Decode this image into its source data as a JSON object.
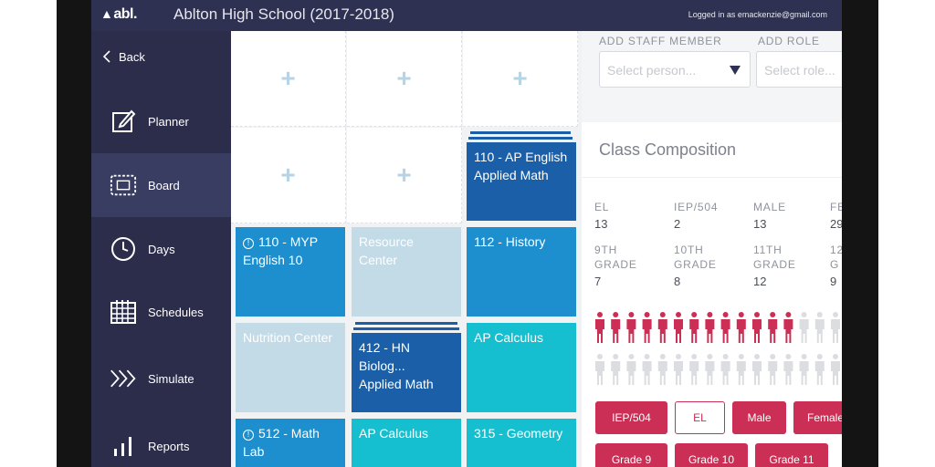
{
  "header": {
    "logo": "abl.",
    "school": "Ablton High School (2017-2018)",
    "login": "Logged in as emackenzie@gmail.com"
  },
  "sidebar": {
    "back": "Back",
    "items": [
      {
        "label": "Planner",
        "icon": "edit-icon"
      },
      {
        "label": "Board",
        "icon": "board-icon"
      },
      {
        "label": "Days",
        "icon": "clock-icon"
      },
      {
        "label": "Schedules",
        "icon": "calendar-icon"
      },
      {
        "label": "Simulate",
        "icon": "fast-forward-icon"
      },
      {
        "label": "Reports",
        "icon": "bar-chart-icon"
      }
    ]
  },
  "board": {
    "plus": "+",
    "cards": {
      "ap_english": {
        "line1": "110 - AP English",
        "line2": "Applied Math"
      },
      "myp": {
        "line1": "110 - MYP",
        "line2": "English 10"
      },
      "resource": {
        "line1": "Resource Center"
      },
      "history": {
        "line1": "112 - History"
      },
      "nutrition": {
        "line1": "Nutrition Center"
      },
      "hn_bio": {
        "line1": "412 - HN Biolog...",
        "line2": "Applied Math"
      },
      "ap_calc_1": {
        "line1": "AP Calculus"
      },
      "math_lab": {
        "line1": "512 - Math Lab"
      },
      "ap_calc_2": {
        "line1": "AP Calculus"
      },
      "geometry": {
        "line1": "315 - Geometry"
      }
    },
    "warn_glyph": "!"
  },
  "panel": {
    "add_staff_label": "ADD STAFF MEMBER",
    "add_role_label": "ADD ROLE",
    "person_placeholder": "Select person...",
    "role_placeholder": "Select role...",
    "composition_title": "Class Composition",
    "stats_row1": [
      {
        "label": "EL",
        "value": "13"
      },
      {
        "label": "IEP/504",
        "value": "2"
      },
      {
        "label": "MALE",
        "value": "13"
      },
      {
        "label": "FE",
        "value": "29"
      }
    ],
    "stats_row2": [
      {
        "label1": "9TH",
        "label2": "GRADE",
        "value": "7"
      },
      {
        "label1": "10TH",
        "label2": "GRADE",
        "value": "8"
      },
      {
        "label1": "11TH",
        "label2": "GRADE",
        "value": "12"
      },
      {
        "label1": "12",
        "label2": "G",
        "value": "9"
      }
    ],
    "people_highlighted": 13,
    "people_per_row": 16,
    "filters_row1": [
      "IEP/504",
      "EL",
      "Male",
      "Female"
    ],
    "filters_row2": [
      "Grade 9",
      "Grade 10",
      "Grade 11"
    ],
    "colors": {
      "accent": "#cc2f55",
      "navy": "#2f3153",
      "dark_blue": "#1a5fa8",
      "blue": "#1d8fcf",
      "light_blue": "#c3dae7",
      "teal": "#15bfcf"
    }
  }
}
